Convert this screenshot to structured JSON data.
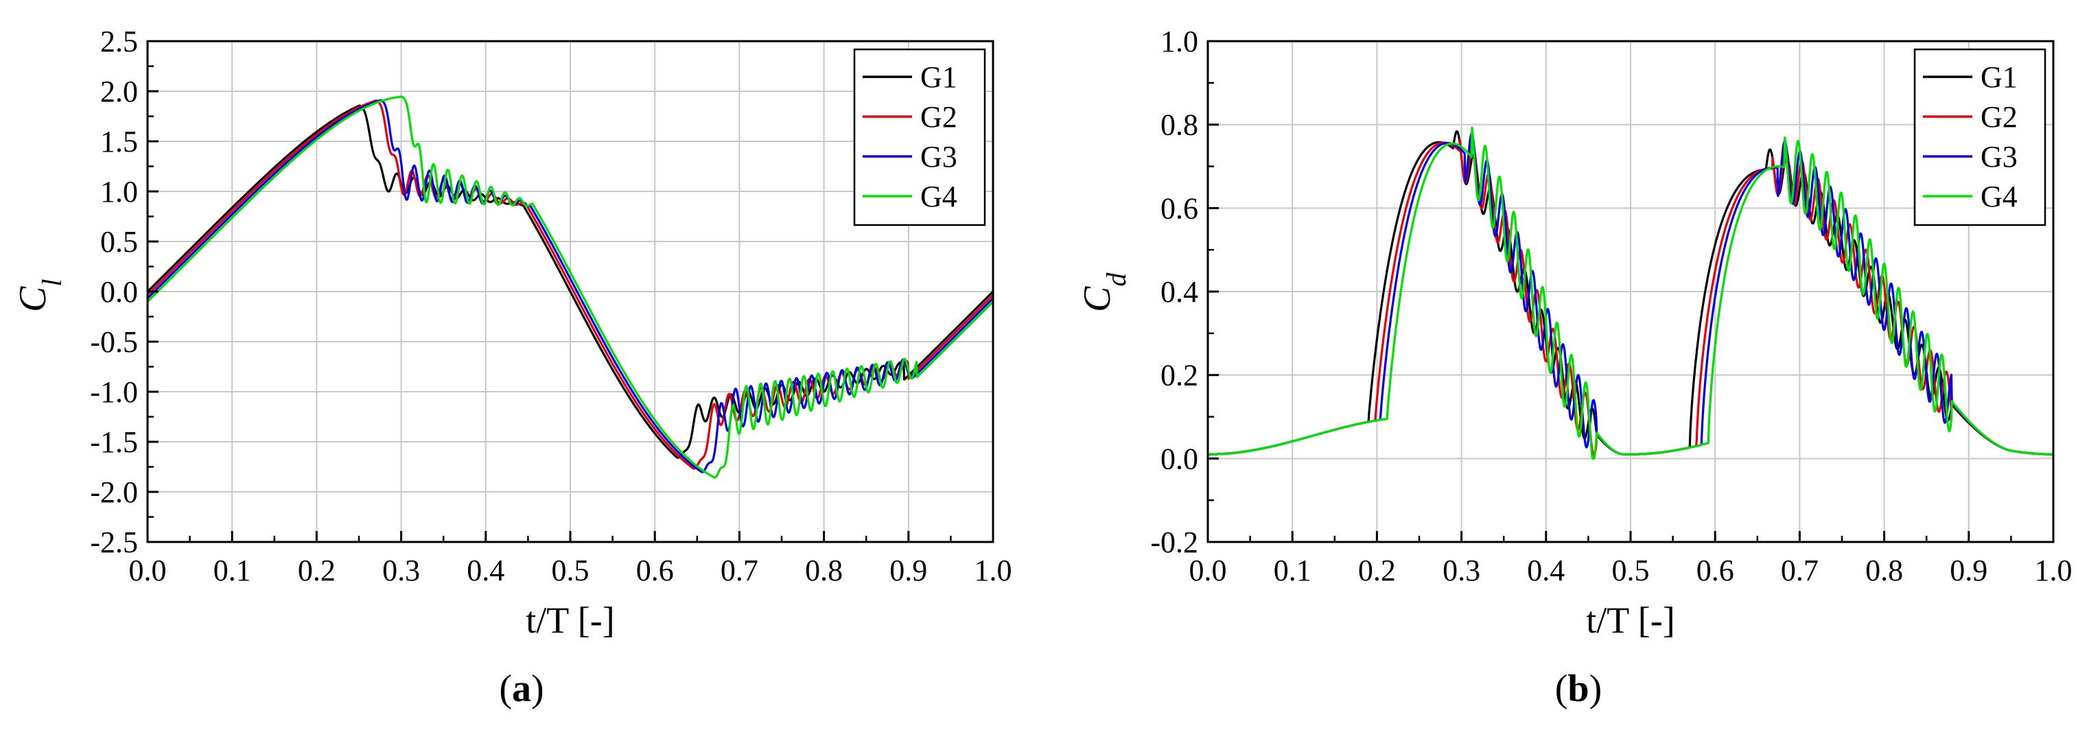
{
  "figure": {
    "panel_a_label": "a",
    "panel_b_label": "b"
  },
  "chart_data": [
    {
      "type": "line",
      "panel": "a",
      "xlabel": "t/T [-]",
      "ylabel_main": "C",
      "ylabel_sub": "l",
      "xlim": [
        0.0,
        1.0
      ],
      "ylim": [
        -2.5,
        2.5
      ],
      "xticks": [
        "0.0",
        "0.1",
        "0.2",
        "0.3",
        "0.4",
        "0.5",
        "0.6",
        "0.7",
        "0.8",
        "0.9",
        "1.0"
      ],
      "yticks": [
        "-2.5",
        "-2.0",
        "-1.5",
        "-1.0",
        "-0.5",
        "0.0",
        "0.5",
        "1.0",
        "1.5",
        "2.0",
        "2.5"
      ],
      "grid": true,
      "legend_position": "top-right",
      "series": [
        {
          "name": "G1",
          "color": "#000000",
          "shift": 0.0,
          "osc_amp": 0.12,
          "osc_period": 0.02,
          "stall_start": 0.25,
          "reattach": 0.455,
          "stall2_start": 0.625,
          "reattach2": 0.895
        },
        {
          "name": "G2",
          "color": "#e8000b",
          "shift": 0.004,
          "osc_amp": 0.16,
          "osc_period": 0.019,
          "stall_start": 0.27,
          "reattach": 0.46,
          "stall2_start": 0.645,
          "reattach2": 0.9
        },
        {
          "name": "G3",
          "color": "#0000ee",
          "shift": 0.008,
          "osc_amp": 0.22,
          "osc_period": 0.018,
          "stall_start": 0.275,
          "reattach": 0.462,
          "stall2_start": 0.655,
          "reattach2": 0.905
        },
        {
          "name": "G4",
          "color": "#00e000",
          "shift": 0.012,
          "osc_amp": 0.25,
          "osc_period": 0.017,
          "stall_start": 0.3,
          "reattach": 0.465,
          "stall2_start": 0.67,
          "reattach2": 0.91
        }
      ]
    },
    {
      "type": "line",
      "panel": "b",
      "xlabel": "t/T [-]",
      "ylabel_main": "C",
      "ylabel_sub": "d",
      "xlim": [
        0.0,
        1.0
      ],
      "ylim": [
        -0.2,
        1.0
      ],
      "xticks": [
        "0.0",
        "0.1",
        "0.2",
        "0.3",
        "0.4",
        "0.5",
        "0.6",
        "0.7",
        "0.8",
        "0.9",
        "1.0"
      ],
      "yticks": [
        "-0.2",
        "0.0",
        "0.2",
        "0.4",
        "0.6",
        "0.8",
        "1.0"
      ],
      "grid": true,
      "legend_position": "top-right",
      "series": [
        {
          "name": "G1",
          "color": "#000000",
          "shift": 0.0,
          "osc_amp": 0.05,
          "osc_period": 0.02
        },
        {
          "name": "G2",
          "color": "#e8000b",
          "shift": 0.008,
          "osc_amp": 0.06,
          "osc_period": 0.019
        },
        {
          "name": "G3",
          "color": "#0000ee",
          "shift": 0.014,
          "osc_amp": 0.07,
          "osc_period": 0.018
        },
        {
          "name": "G4",
          "color": "#00e000",
          "shift": 0.022,
          "osc_amp": 0.08,
          "osc_period": 0.017
        }
      ]
    }
  ]
}
